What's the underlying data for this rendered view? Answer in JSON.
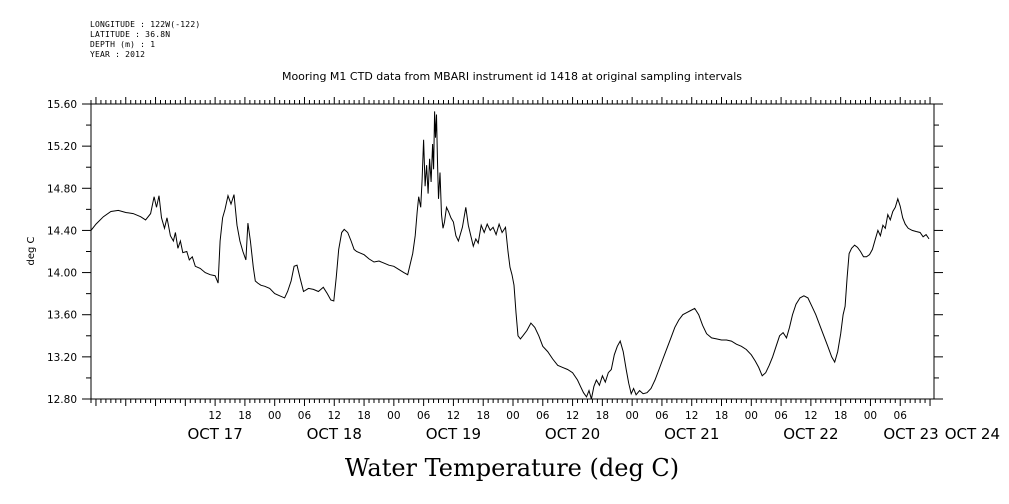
{
  "header": {
    "lines": [
      "LONGITUDE : 122W(-122)",
      "LATITUDE : 36.8N",
      "DEPTH (m) : 1",
      "YEAR : 2012"
    ]
  },
  "chart_data": {
    "type": "line",
    "title": "Mooring M1 CTD data from MBARI instrument id 1418 at original sampling intervals",
    "xlabel": "Water Temperature (deg C)",
    "ylabel": "deg C",
    "ylim": [
      12.8,
      15.6
    ],
    "yticks": [
      "12.80",
      "13.20",
      "13.60",
      "14.00",
      "14.40",
      "14.80",
      "15.20",
      "15.60"
    ],
    "x_unit": "hours since Oct 17 00:00 (2012)",
    "xlim": [
      -13,
      151
    ],
    "hour_ticks": [
      {
        "h": 12,
        "label": "12"
      },
      {
        "h": 18,
        "label": "18"
      },
      {
        "h": 24,
        "label": "00"
      },
      {
        "h": 30,
        "label": "06"
      },
      {
        "h": 36,
        "label": "12"
      },
      {
        "h": 42,
        "label": "18"
      },
      {
        "h": 48,
        "label": "00"
      },
      {
        "h": 54,
        "label": "06"
      },
      {
        "h": 60,
        "label": "12"
      },
      {
        "h": 66,
        "label": "18"
      },
      {
        "h": 72,
        "label": "00"
      },
      {
        "h": 78,
        "label": "06"
      },
      {
        "h": 84,
        "label": "12"
      },
      {
        "h": 90,
        "label": "18"
      },
      {
        "h": 96,
        "label": "00"
      },
      {
        "h": 102,
        "label": "06"
      },
      {
        "h": 108,
        "label": "12"
      },
      {
        "h": 114,
        "label": "18"
      },
      {
        "h": 120,
        "label": "00"
      },
      {
        "h": 126,
        "label": "06"
      },
      {
        "h": 132,
        "label": "12"
      },
      {
        "h": 138,
        "label": "18"
      },
      {
        "h": 144,
        "label": "00"
      },
      {
        "h": 150,
        "label": "06"
      }
    ],
    "date_labels": [
      {
        "h": 12,
        "label": "OCT 17"
      },
      {
        "h": 36,
        "label": "OCT 18"
      },
      {
        "h": 60,
        "label": "OCT 19"
      },
      {
        "h": 84,
        "label": "OCT 20"
      },
      {
        "h": 108,
        "label": "OCT 21"
      },
      {
        "h": 132,
        "label": "OCT 22"
      },
      {
        "h": 156,
        "label": "OCT 23"
      },
      {
        "h": 166,
        "label": "OCT 24"
      }
    ],
    "series": [
      {
        "points": [
          [
            -13.0,
            14.4
          ],
          [
            -12.0,
            14.46
          ],
          [
            -10.5,
            14.53
          ],
          [
            -9.0,
            14.58
          ],
          [
            -7.5,
            14.59
          ],
          [
            -6.0,
            14.57
          ],
          [
            -4.5,
            14.56
          ],
          [
            -3.0,
            14.53
          ],
          [
            -2.0,
            14.5
          ],
          [
            -1.0,
            14.56
          ],
          [
            -0.3,
            14.72
          ],
          [
            0.2,
            14.62
          ],
          [
            0.7,
            14.73
          ],
          [
            1.2,
            14.52
          ],
          [
            1.8,
            14.42
          ],
          [
            2.3,
            14.52
          ],
          [
            3.0,
            14.35
          ],
          [
            3.6,
            14.3
          ],
          [
            4.0,
            14.38
          ],
          [
            4.5,
            14.23
          ],
          [
            5.0,
            14.3
          ],
          [
            5.5,
            14.19
          ],
          [
            6.3,
            14.2
          ],
          [
            6.8,
            14.12
          ],
          [
            7.4,
            14.15
          ],
          [
            8.0,
            14.06
          ],
          [
            9.0,
            14.04
          ],
          [
            10.0,
            14.0
          ],
          [
            11.0,
            13.98
          ],
          [
            12.0,
            13.97
          ],
          [
            12.6,
            13.9
          ],
          [
            13.0,
            14.3
          ],
          [
            13.5,
            14.52
          ],
          [
            14.0,
            14.6
          ],
          [
            14.6,
            14.73
          ],
          [
            15.2,
            14.65
          ],
          [
            15.8,
            14.74
          ],
          [
            16.4,
            14.45
          ],
          [
            17.0,
            14.3
          ],
          [
            17.6,
            14.2
          ],
          [
            18.2,
            14.12
          ],
          [
            18.6,
            14.47
          ],
          [
            19.1,
            14.3
          ],
          [
            19.7,
            14.05
          ],
          [
            20.1,
            13.92
          ],
          [
            20.6,
            13.9
          ],
          [
            21.2,
            13.88
          ],
          [
            22.0,
            13.87
          ],
          [
            23.0,
            13.85
          ],
          [
            24.0,
            13.8
          ],
          [
            25.0,
            13.78
          ],
          [
            26.0,
            13.76
          ],
          [
            26.6,
            13.82
          ],
          [
            27.3,
            13.92
          ],
          [
            27.9,
            14.06
          ],
          [
            28.5,
            14.07
          ],
          [
            29.1,
            13.95
          ],
          [
            29.8,
            13.82
          ],
          [
            30.8,
            13.85
          ],
          [
            31.8,
            13.84
          ],
          [
            32.8,
            13.82
          ],
          [
            33.8,
            13.86
          ],
          [
            34.6,
            13.8
          ],
          [
            35.3,
            13.74
          ],
          [
            35.9,
            13.73
          ],
          [
            36.4,
            13.96
          ],
          [
            36.9,
            14.22
          ],
          [
            37.5,
            14.38
          ],
          [
            38.0,
            14.41
          ],
          [
            38.7,
            14.38
          ],
          [
            39.4,
            14.3
          ],
          [
            40.0,
            14.22
          ],
          [
            40.5,
            14.2
          ],
          [
            41.0,
            14.19
          ],
          [
            42.0,
            14.17
          ],
          [
            43.0,
            14.13
          ],
          [
            44.0,
            14.1
          ],
          [
            45.0,
            14.11
          ],
          [
            46.0,
            14.09
          ],
          [
            47.0,
            14.07
          ],
          [
            48.0,
            14.06
          ],
          [
            49.0,
            14.03
          ],
          [
            50.0,
            14.0
          ],
          [
            50.8,
            13.98
          ],
          [
            51.3,
            14.08
          ],
          [
            51.8,
            14.18
          ],
          [
            52.3,
            14.35
          ],
          [
            52.7,
            14.58
          ],
          [
            53.0,
            14.72
          ],
          [
            53.4,
            14.62
          ],
          [
            53.7,
            14.88
          ],
          [
            54.0,
            15.26
          ],
          [
            54.3,
            14.82
          ],
          [
            54.6,
            15.02
          ],
          [
            54.9,
            14.75
          ],
          [
            55.2,
            15.08
          ],
          [
            55.5,
            14.86
          ],
          [
            55.8,
            15.22
          ],
          [
            56.0,
            14.98
          ],
          [
            56.2,
            15.53
          ],
          [
            56.4,
            15.28
          ],
          [
            56.6,
            15.5
          ],
          [
            56.8,
            15.05
          ],
          [
            57.0,
            14.7
          ],
          [
            57.3,
            14.95
          ],
          [
            57.6,
            14.55
          ],
          [
            57.9,
            14.42
          ],
          [
            58.2,
            14.48
          ],
          [
            58.6,
            14.62
          ],
          [
            59.0,
            14.58
          ],
          [
            59.5,
            14.52
          ],
          [
            60.0,
            14.48
          ],
          [
            60.5,
            14.35
          ],
          [
            61.0,
            14.3
          ],
          [
            61.8,
            14.43
          ],
          [
            62.5,
            14.62
          ],
          [
            63.0,
            14.45
          ],
          [
            63.5,
            14.35
          ],
          [
            64.0,
            14.25
          ],
          [
            64.5,
            14.32
          ],
          [
            65.0,
            14.28
          ],
          [
            65.6,
            14.45
          ],
          [
            66.2,
            14.38
          ],
          [
            66.8,
            14.46
          ],
          [
            67.4,
            14.4
          ],
          [
            68.0,
            14.43
          ],
          [
            68.6,
            14.36
          ],
          [
            69.2,
            14.46
          ],
          [
            69.8,
            14.38
          ],
          [
            70.5,
            14.43
          ],
          [
            71.0,
            14.2
          ],
          [
            71.4,
            14.05
          ],
          [
            71.8,
            13.98
          ],
          [
            72.2,
            13.88
          ],
          [
            72.6,
            13.62
          ],
          [
            73.0,
            13.4
          ],
          [
            73.5,
            13.37
          ],
          [
            74.0,
            13.4
          ],
          [
            74.8,
            13.45
          ],
          [
            75.6,
            13.52
          ],
          [
            76.4,
            13.48
          ],
          [
            77.2,
            13.4
          ],
          [
            78.0,
            13.3
          ],
          [
            79.0,
            13.25
          ],
          [
            80.0,
            13.18
          ],
          [
            81.0,
            13.12
          ],
          [
            82.0,
            13.1
          ],
          [
            83.0,
            13.08
          ],
          [
            84.0,
            13.05
          ],
          [
            85.0,
            12.98
          ],
          [
            85.6,
            12.92
          ],
          [
            86.2,
            12.86
          ],
          [
            86.8,
            12.82
          ],
          [
            87.3,
            12.88
          ],
          [
            87.8,
            12.8
          ],
          [
            88.3,
            12.92
          ],
          [
            88.8,
            12.98
          ],
          [
            89.4,
            12.93
          ],
          [
            90.0,
            13.02
          ],
          [
            90.6,
            12.96
          ],
          [
            91.2,
            13.05
          ],
          [
            91.8,
            13.08
          ],
          [
            92.4,
            13.22
          ],
          [
            93.0,
            13.3
          ],
          [
            93.6,
            13.35
          ],
          [
            94.2,
            13.25
          ],
          [
            94.8,
            13.08
          ],
          [
            95.3,
            12.95
          ],
          [
            95.8,
            12.85
          ],
          [
            96.3,
            12.9
          ],
          [
            96.8,
            12.84
          ],
          [
            97.5,
            12.88
          ],
          [
            98.2,
            12.85
          ],
          [
            99.0,
            12.86
          ],
          [
            99.8,
            12.9
          ],
          [
            100.6,
            12.98
          ],
          [
            101.4,
            13.08
          ],
          [
            102.2,
            13.18
          ],
          [
            103.0,
            13.28
          ],
          [
            103.8,
            13.38
          ],
          [
            104.6,
            13.48
          ],
          [
            105.4,
            13.55
          ],
          [
            106.2,
            13.6
          ],
          [
            107.0,
            13.62
          ],
          [
            107.8,
            13.64
          ],
          [
            108.6,
            13.66
          ],
          [
            109.4,
            13.6
          ],
          [
            110.2,
            13.5
          ],
          [
            111.0,
            13.42
          ],
          [
            112.0,
            13.38
          ],
          [
            113.0,
            13.37
          ],
          [
            114.0,
            13.36
          ],
          [
            115.0,
            13.36
          ],
          [
            116.0,
            13.35
          ],
          [
            117.0,
            13.32
          ],
          [
            118.0,
            13.3
          ],
          [
            119.0,
            13.27
          ],
          [
            120.0,
            13.22
          ],
          [
            120.8,
            13.16
          ],
          [
            121.5,
            13.1
          ],
          [
            122.2,
            13.02
          ],
          [
            122.9,
            13.05
          ],
          [
            123.6,
            13.12
          ],
          [
            124.3,
            13.2
          ],
          [
            125.0,
            13.3
          ],
          [
            125.7,
            13.4
          ],
          [
            126.4,
            13.43
          ],
          [
            127.1,
            13.38
          ],
          [
            127.7,
            13.48
          ],
          [
            128.3,
            13.6
          ],
          [
            129.0,
            13.7
          ],
          [
            129.8,
            13.76
          ],
          [
            130.6,
            13.78
          ],
          [
            131.4,
            13.76
          ],
          [
            132.2,
            13.68
          ],
          [
            133.0,
            13.6
          ],
          [
            133.8,
            13.5
          ],
          [
            134.6,
            13.4
          ],
          [
            135.4,
            13.3
          ],
          [
            136.2,
            13.2
          ],
          [
            136.8,
            13.15
          ],
          [
            137.4,
            13.25
          ],
          [
            138.0,
            13.42
          ],
          [
            138.5,
            13.6
          ],
          [
            138.9,
            13.68
          ],
          [
            139.3,
            13.95
          ],
          [
            139.7,
            14.18
          ],
          [
            140.2,
            14.23
          ],
          [
            140.8,
            14.26
          ],
          [
            141.4,
            14.24
          ],
          [
            142.0,
            14.2
          ],
          [
            142.6,
            14.15
          ],
          [
            143.2,
            14.15
          ],
          [
            143.8,
            14.17
          ],
          [
            144.4,
            14.22
          ],
          [
            145.0,
            14.32
          ],
          [
            145.5,
            14.4
          ],
          [
            146.0,
            14.35
          ],
          [
            146.5,
            14.45
          ],
          [
            147.0,
            14.42
          ],
          [
            147.5,
            14.55
          ],
          [
            148.0,
            14.5
          ],
          [
            148.5,
            14.58
          ],
          [
            149.0,
            14.62
          ],
          [
            149.5,
            14.7
          ],
          [
            150.0,
            14.63
          ],
          [
            150.5,
            14.52
          ],
          [
            151.0,
            14.46
          ],
          [
            151.6,
            14.42
          ],
          [
            152.4,
            14.4
          ],
          [
            153.2,
            14.39
          ],
          [
            154.0,
            14.38
          ],
          [
            154.6,
            14.34
          ],
          [
            155.2,
            14.36
          ],
          [
            155.8,
            14.32
          ]
        ]
      }
    ]
  }
}
